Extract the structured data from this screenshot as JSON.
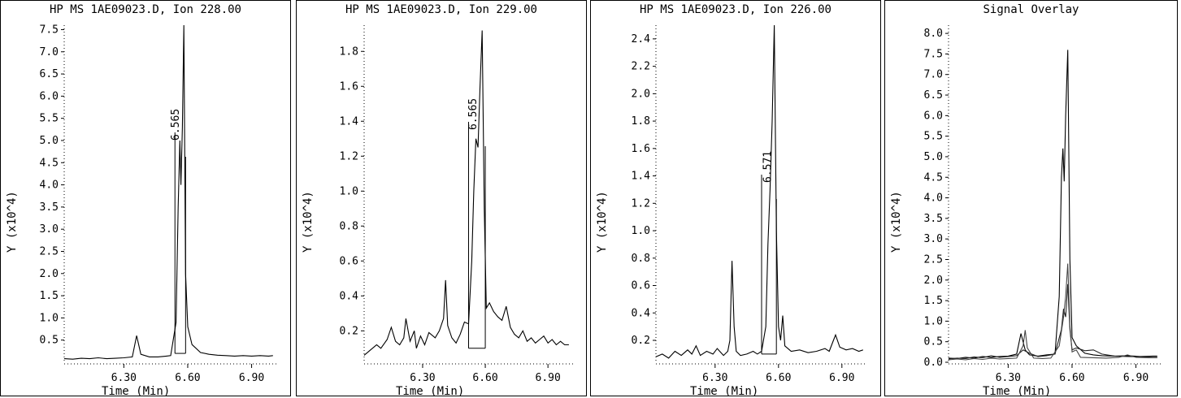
{
  "chart_data": [
    {
      "type": "line",
      "title": "HP MS 1AE09023.D, Ion 228.00",
      "xlabel": "Time (Min)",
      "ylabel": "Y (x10^4)",
      "xlim": [
        6.02,
        7.02
      ],
      "ylim": [
        0,
        7.6
      ],
      "xticks": [
        6.3,
        6.6,
        6.9
      ],
      "xtick_labels": [
        "6.30",
        "6.60",
        "6.90"
      ],
      "yticks": [
        0.5,
        1.0,
        1.5,
        2.0,
        2.5,
        3.0,
        3.5,
        4.0,
        4.5,
        5.0,
        5.5,
        6.0,
        6.5,
        7.0,
        7.5
      ],
      "ytick_labels": [
        "0.5",
        "1.0",
        "1.5",
        "2.0",
        "2.5",
        "3.0",
        "3.5",
        "4.0",
        "4.5",
        "5.0",
        "5.5",
        "6.0",
        "6.5",
        "7.0",
        "7.5"
      ],
      "peak_label": {
        "text": "6.565",
        "x": 6.565,
        "y": 5.0
      },
      "integration_box": {
        "x0": 6.54,
        "x1": 6.59,
        "y0": 0.2,
        "y1": 5.0
      },
      "series": [
        {
          "values": [
            [
              6.02,
              0.08
            ],
            [
              6.06,
              0.07
            ],
            [
              6.1,
              0.09
            ],
            [
              6.14,
              0.08
            ],
            [
              6.18,
              0.1
            ],
            [
              6.22,
              0.08
            ],
            [
              6.26,
              0.09
            ],
            [
              6.3,
              0.1
            ],
            [
              6.34,
              0.12
            ],
            [
              6.36,
              0.6
            ],
            [
              6.38,
              0.18
            ],
            [
              6.42,
              0.12
            ],
            [
              6.46,
              0.12
            ],
            [
              6.5,
              0.14
            ],
            [
              6.52,
              0.15
            ],
            [
              6.545,
              0.9
            ],
            [
              6.555,
              3.5
            ],
            [
              6.563,
              5.0
            ],
            [
              6.568,
              4.0
            ],
            [
              6.575,
              5.3
            ],
            [
              6.582,
              7.6
            ],
            [
              6.59,
              2.0
            ],
            [
              6.6,
              0.8
            ],
            [
              6.62,
              0.4
            ],
            [
              6.66,
              0.22
            ],
            [
              6.7,
              0.18
            ],
            [
              6.74,
              0.16
            ],
            [
              6.78,
              0.15
            ],
            [
              6.82,
              0.14
            ],
            [
              6.86,
              0.15
            ],
            [
              6.9,
              0.14
            ],
            [
              6.94,
              0.15
            ],
            [
              6.98,
              0.14
            ],
            [
              7.0,
              0.15
            ]
          ]
        }
      ]
    },
    {
      "type": "line",
      "title": "HP MS 1AE09023.D, Ion 229.00",
      "xlabel": "Time (Min)",
      "ylabel": "Y (x10^4)",
      "xlim": [
        6.02,
        7.02
      ],
      "ylim": [
        0.02,
        1.95
      ],
      "xticks": [
        6.3,
        6.6,
        6.9
      ],
      "xtick_labels": [
        "6.30",
        "6.60",
        "6.90"
      ],
      "yticks": [
        0.2,
        0.4,
        0.6,
        0.8,
        1.0,
        1.2,
        1.4,
        1.6,
        1.8
      ],
      "ytick_labels": [
        "0.2",
        "0.4",
        "0.6",
        "0.8",
        "1.0",
        "1.2",
        "1.4",
        "1.6",
        "1.8"
      ],
      "peak_label": {
        "text": "6.565",
        "x": 6.565,
        "y": 1.35
      },
      "integration_box": {
        "x0": 6.52,
        "x1": 6.6,
        "y0": 0.1,
        "y1": 1.35
      },
      "series": [
        {
          "values": [
            [
              6.02,
              0.06
            ],
            [
              6.05,
              0.09
            ],
            [
              6.08,
              0.12
            ],
            [
              6.1,
              0.1
            ],
            [
              6.13,
              0.15
            ],
            [
              6.15,
              0.22
            ],
            [
              6.17,
              0.14
            ],
            [
              6.19,
              0.12
            ],
            [
              6.21,
              0.16
            ],
            [
              6.22,
              0.27
            ],
            [
              6.24,
              0.14
            ],
            [
              6.26,
              0.2
            ],
            [
              6.27,
              0.1
            ],
            [
              6.29,
              0.17
            ],
            [
              6.31,
              0.12
            ],
            [
              6.33,
              0.19
            ],
            [
              6.36,
              0.16
            ],
            [
              6.38,
              0.2
            ],
            [
              6.4,
              0.27
            ],
            [
              6.41,
              0.49
            ],
            [
              6.42,
              0.23
            ],
            [
              6.44,
              0.16
            ],
            [
              6.46,
              0.13
            ],
            [
              6.48,
              0.18
            ],
            [
              6.5,
              0.25
            ],
            [
              6.52,
              0.24
            ],
            [
              6.535,
              0.6
            ],
            [
              6.545,
              1.0
            ],
            [
              6.555,
              1.3
            ],
            [
              6.565,
              1.25
            ],
            [
              6.575,
              1.6
            ],
            [
              6.585,
              1.92
            ],
            [
              6.595,
              0.9
            ],
            [
              6.605,
              0.33
            ],
            [
              6.62,
              0.36
            ],
            [
              6.64,
              0.31
            ],
            [
              6.66,
              0.28
            ],
            [
              6.68,
              0.26
            ],
            [
              6.7,
              0.34
            ],
            [
              6.72,
              0.22
            ],
            [
              6.74,
              0.18
            ],
            [
              6.76,
              0.16
            ],
            [
              6.78,
              0.2
            ],
            [
              6.8,
              0.14
            ],
            [
              6.82,
              0.16
            ],
            [
              6.84,
              0.13
            ],
            [
              6.86,
              0.15
            ],
            [
              6.88,
              0.17
            ],
            [
              6.9,
              0.13
            ],
            [
              6.92,
              0.15
            ],
            [
              6.94,
              0.12
            ],
            [
              6.96,
              0.14
            ],
            [
              6.98,
              0.12
            ],
            [
              7.0,
              0.12
            ]
          ]
        }
      ]
    },
    {
      "type": "line",
      "title": "HP MS 1AE09023.D, Ion 226.00",
      "xlabel": "Time (Min)",
      "ylabel": "Y (x10^4)",
      "xlim": [
        6.02,
        7.02
      ],
      "ylim": [
        0.04,
        2.5
      ],
      "xticks": [
        6.3,
        6.6,
        6.9
      ],
      "xtick_labels": [
        "6.30",
        "6.60",
        "6.90"
      ],
      "yticks": [
        0.2,
        0.4,
        0.6,
        0.8,
        1.0,
        1.2,
        1.4,
        1.6,
        1.8,
        2.0,
        2.2,
        2.4
      ],
      "ytick_labels": [
        "0.2",
        "0.4",
        "0.6",
        "0.8",
        "1.0",
        "1.2",
        "1.4",
        "1.6",
        "1.8",
        "2.0",
        "2.2",
        "2.4"
      ],
      "peak_label": {
        "text": "6.571",
        "x": 6.571,
        "y": 1.35
      },
      "integration_box": {
        "x0": 6.52,
        "x1": 6.59,
        "y0": 0.1,
        "y1": 1.35
      },
      "series": [
        {
          "values": [
            [
              6.02,
              0.08
            ],
            [
              6.05,
              0.1
            ],
            [
              6.08,
              0.07
            ],
            [
              6.11,
              0.12
            ],
            [
              6.14,
              0.09
            ],
            [
              6.17,
              0.13
            ],
            [
              6.19,
              0.1
            ],
            [
              6.21,
              0.16
            ],
            [
              6.23,
              0.09
            ],
            [
              6.26,
              0.12
            ],
            [
              6.29,
              0.1
            ],
            [
              6.31,
              0.14
            ],
            [
              6.34,
              0.09
            ],
            [
              6.36,
              0.12
            ],
            [
              6.37,
              0.2
            ],
            [
              6.38,
              0.78
            ],
            [
              6.39,
              0.3
            ],
            [
              6.4,
              0.12
            ],
            [
              6.42,
              0.09
            ],
            [
              6.45,
              0.1
            ],
            [
              6.48,
              0.12
            ],
            [
              6.5,
              0.1
            ],
            [
              6.52,
              0.12
            ],
            [
              6.54,
              0.3
            ],
            [
              6.55,
              0.9
            ],
            [
              6.56,
              1.3
            ],
            [
              6.57,
              1.8
            ],
            [
              6.58,
              2.5
            ],
            [
              6.59,
              1.0
            ],
            [
              6.6,
              0.3
            ],
            [
              6.61,
              0.2
            ],
            [
              6.62,
              0.38
            ],
            [
              6.63,
              0.16
            ],
            [
              6.66,
              0.12
            ],
            [
              6.7,
              0.13
            ],
            [
              6.74,
              0.11
            ],
            [
              6.78,
              0.12
            ],
            [
              6.82,
              0.14
            ],
            [
              6.84,
              0.12
            ],
            [
              6.86,
              0.2
            ],
            [
              6.87,
              0.24
            ],
            [
              6.89,
              0.15
            ],
            [
              6.92,
              0.13
            ],
            [
              6.95,
              0.14
            ],
            [
              6.98,
              0.12
            ],
            [
              7.0,
              0.13
            ]
          ]
        }
      ]
    },
    {
      "type": "line",
      "title": "Signal Overlay",
      "xlabel": "Time (Min)",
      "ylabel": "Y (x10^4)",
      "xlim": [
        6.02,
        7.02
      ],
      "ylim": [
        0,
        8.2
      ],
      "xticks": [
        6.3,
        6.6,
        6.9
      ],
      "xtick_labels": [
        "6.30",
        "6.60",
        "6.90"
      ],
      "yticks": [
        0.0,
        0.5,
        1.0,
        1.5,
        2.0,
        2.5,
        3.0,
        3.5,
        4.0,
        4.5,
        5.0,
        5.5,
        6.0,
        6.5,
        7.0,
        7.5,
        8.0
      ],
      "ytick_labels": [
        "0.0",
        "0.5",
        "1.0",
        "1.5",
        "2.0",
        "2.5",
        "3.0",
        "3.5",
        "4.0",
        "4.5",
        "5.0",
        "5.5",
        "6.0",
        "6.5",
        "7.0",
        "7.5",
        "8.0"
      ],
      "series": [
        {
          "values": [
            [
              6.02,
              0.1
            ],
            [
              6.06,
              0.09
            ],
            [
              6.1,
              0.12
            ],
            [
              6.14,
              0.1
            ],
            [
              6.18,
              0.14
            ],
            [
              6.22,
              0.12
            ],
            [
              6.26,
              0.14
            ],
            [
              6.3,
              0.15
            ],
            [
              6.34,
              0.2
            ],
            [
              6.36,
              0.7
            ],
            [
              6.38,
              0.3
            ],
            [
              6.4,
              0.18
            ],
            [
              6.44,
              0.15
            ],
            [
              6.48,
              0.18
            ],
            [
              6.52,
              0.2
            ],
            [
              6.54,
              1.6
            ],
            [
              6.55,
              4.5
            ],
            [
              6.557,
              5.2
            ],
            [
              6.563,
              4.4
            ],
            [
              6.57,
              6.0
            ],
            [
              6.58,
              7.6
            ],
            [
              6.59,
              2.5
            ],
            [
              6.6,
              0.6
            ],
            [
              6.62,
              0.4
            ],
            [
              6.66,
              0.22
            ],
            [
              6.7,
              0.18
            ],
            [
              6.74,
              0.16
            ],
            [
              6.8,
              0.15
            ],
            [
              6.86,
              0.16
            ],
            [
              6.92,
              0.14
            ],
            [
              6.98,
              0.15
            ],
            [
              7.0,
              0.15
            ]
          ]
        },
        {
          "values": [
            [
              6.02,
              0.08
            ],
            [
              6.06,
              0.1
            ],
            [
              6.1,
              0.09
            ],
            [
              6.14,
              0.13
            ],
            [
              6.18,
              0.11
            ],
            [
              6.22,
              0.16
            ],
            [
              6.26,
              0.12
            ],
            [
              6.3,
              0.14
            ],
            [
              6.34,
              0.16
            ],
            [
              6.37,
              0.3
            ],
            [
              6.4,
              0.22
            ],
            [
              6.44,
              0.14
            ],
            [
              6.48,
              0.16
            ],
            [
              6.52,
              0.2
            ],
            [
              6.55,
              0.8
            ],
            [
              6.56,
              1.3
            ],
            [
              6.57,
              1.1
            ],
            [
              6.58,
              1.9
            ],
            [
              6.59,
              0.8
            ],
            [
              6.6,
              0.3
            ],
            [
              6.62,
              0.35
            ],
            [
              6.66,
              0.28
            ],
            [
              6.7,
              0.3
            ],
            [
              6.74,
              0.2
            ],
            [
              6.8,
              0.15
            ],
            [
              6.86,
              0.14
            ],
            [
              6.92,
              0.13
            ],
            [
              6.98,
              0.12
            ],
            [
              7.0,
              0.12
            ]
          ]
        },
        {
          "values": [
            [
              6.02,
              0.06
            ],
            [
              6.06,
              0.08
            ],
            [
              6.1,
              0.06
            ],
            [
              6.14,
              0.09
            ],
            [
              6.18,
              0.07
            ],
            [
              6.22,
              0.1
            ],
            [
              6.26,
              0.08
            ],
            [
              6.3,
              0.09
            ],
            [
              6.34,
              0.1
            ],
            [
              6.37,
              0.4
            ],
            [
              6.38,
              0.78
            ],
            [
              6.39,
              0.35
            ],
            [
              6.42,
              0.1
            ],
            [
              6.46,
              0.09
            ],
            [
              6.5,
              0.1
            ],
            [
              6.54,
              0.4
            ],
            [
              6.56,
              1.1
            ],
            [
              6.57,
              1.6
            ],
            [
              6.58,
              2.4
            ],
            [
              6.59,
              0.9
            ],
            [
              6.6,
              0.25
            ],
            [
              6.62,
              0.3
            ],
            [
              6.64,
              0.12
            ],
            [
              6.7,
              0.11
            ],
            [
              6.76,
              0.1
            ],
            [
              6.82,
              0.12
            ],
            [
              6.86,
              0.18
            ],
            [
              6.9,
              0.12
            ],
            [
              6.96,
              0.11
            ],
            [
              7.0,
              0.11
            ]
          ]
        }
      ]
    }
  ]
}
